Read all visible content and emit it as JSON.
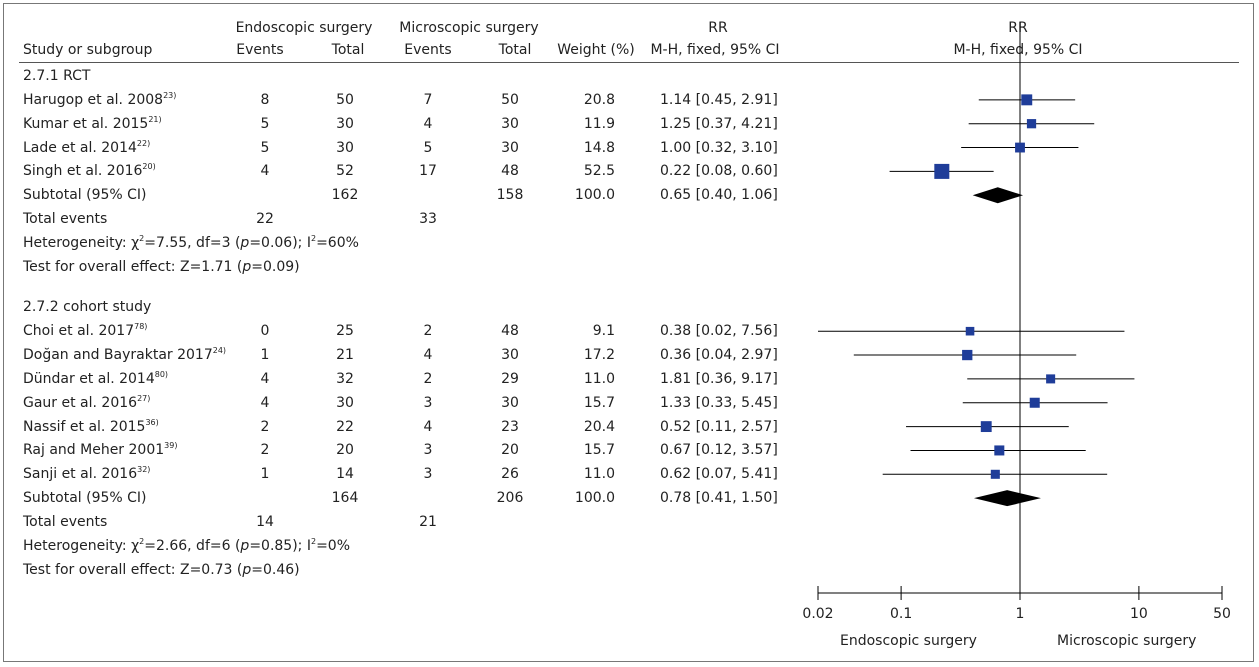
{
  "header": {
    "group1": "Endoscopic surgery",
    "group2": "Microscopic surgery",
    "rr_head": "RR",
    "study_col": "Study or subgroup",
    "events": "Events",
    "total": "Total",
    "weight": "Weight (%)",
    "method": "M-H, fixed, 95% CI",
    "plot_rr": "RR",
    "plot_method": "M-H, fixed, 95% CI"
  },
  "chart_data": {
    "type": "forest",
    "x_scale": "log",
    "xlim": [
      0.02,
      50
    ],
    "x_ticks": [
      "0.02",
      "0.1",
      "1",
      "10",
      "50"
    ],
    "null_value": 1,
    "favours_left": "Endoscopic surgery",
    "favours_right": "Microscopic surgery",
    "subgroups": [
      {
        "title": "2.7.1 RCT",
        "studies": [
          {
            "name": "Harugop et al. 2008",
            "ref": "23)",
            "e_events": "8",
            "e_total": "50",
            "m_events": "7",
            "m_total": "50",
            "weight": "20.8",
            "ci_text": "1.14 [0.45, 2.91]",
            "rr": 1.14,
            "lo": 0.45,
            "hi": 2.91,
            "w": 20.8
          },
          {
            "name": "Kumar et al. 2015",
            "ref": "21)",
            "e_events": "5",
            "e_total": "30",
            "m_events": "4",
            "m_total": "30",
            "weight": "11.9",
            "ci_text": "1.25 [0.37, 4.21]",
            "rr": 1.25,
            "lo": 0.37,
            "hi": 4.21,
            "w": 11.9
          },
          {
            "name": "Lade et al. 2014",
            "ref": "22)",
            "e_events": "5",
            "e_total": "30",
            "m_events": "5",
            "m_total": "30",
            "weight": "14.8",
            "ci_text": "1.00 [0.32, 3.10]",
            "rr": 1.0,
            "lo": 0.32,
            "hi": 3.1,
            "w": 14.8
          },
          {
            "name": "Singh et al. 2016",
            "ref": "20)",
            "e_events": "4",
            "e_total": "52",
            "m_events": "17",
            "m_total": "48",
            "weight": "52.5",
            "ci_text": "0.22 [0.08, 0.60]",
            "rr": 0.22,
            "lo": 0.08,
            "hi": 0.6,
            "w": 52.5
          }
        ],
        "subtotal": {
          "label": "Subtotal (95% CI)",
          "e_total": "162",
          "m_total": "158",
          "weight": "100.0",
          "ci_text": "0.65 [0.40, 1.06]",
          "rr": 0.65,
          "lo": 0.4,
          "hi": 1.06
        },
        "total_events": {
          "label": "Total events",
          "e": "22",
          "m": "33"
        },
        "heterogeneity": {
          "prefix": "Heterogeneity: ",
          "chi": "χ",
          "chi_sup": "2",
          "rest": "=7.55, df=3 (",
          "p": "p",
          "p_rest": "=0.06); I",
          "i_sup": "2",
          "end": "=60%"
        },
        "overall": {
          "text": "Test for overall effect: Z=1.71 (",
          "p": "p",
          "end": "=0.09)"
        }
      },
      {
        "title": "2.7.2 cohort study",
        "studies": [
          {
            "name": "Choi et al. 2017",
            "ref": "78)",
            "e_events": "0",
            "e_total": "25",
            "m_events": "2",
            "m_total": "48",
            "weight": "9.1",
            "ci_text": "0.38 [0.02, 7.56]",
            "rr": 0.38,
            "lo": 0.02,
            "hi": 7.56,
            "w": 9.1
          },
          {
            "name": "Doğan and Bayraktar 2017",
            "ref": "24)",
            "e_events": "1",
            "e_total": "21",
            "m_events": "4",
            "m_total": "30",
            "weight": "17.2",
            "ci_text": "0.36 [0.04, 2.97]",
            "rr": 0.36,
            "lo": 0.04,
            "hi": 2.97,
            "w": 17.2
          },
          {
            "name": "Dündar et al. 2014",
            "ref": "80)",
            "e_events": "4",
            "e_total": "32",
            "m_events": "2",
            "m_total": "29",
            "weight": "11.0",
            "ci_text": "1.81 [0.36, 9.17]",
            "rr": 1.81,
            "lo": 0.36,
            "hi": 9.17,
            "w": 11.0
          },
          {
            "name": "Gaur et al. 2016",
            "ref": "27)",
            "e_events": "4",
            "e_total": "30",
            "m_events": "3",
            "m_total": "30",
            "weight": "15.7",
            "ci_text": "1.33 [0.33, 5.45]",
            "rr": 1.33,
            "lo": 0.33,
            "hi": 5.45,
            "w": 15.7
          },
          {
            "name": "Nassif et al. 2015",
            "ref": "36)",
            "e_events": "2",
            "e_total": "22",
            "m_events": "4",
            "m_total": "23",
            "weight": "20.4",
            "ci_text": "0.52 [0.11, 2.57]",
            "rr": 0.52,
            "lo": 0.11,
            "hi": 2.57,
            "w": 20.4
          },
          {
            "name": "Raj and Meher 2001",
            "ref": "39)",
            "e_events": "2",
            "e_total": "20",
            "m_events": "3",
            "m_total": "20",
            "weight": "15.7",
            "ci_text": "0.67 [0.12, 3.57]",
            "rr": 0.67,
            "lo": 0.12,
            "hi": 3.57,
            "w": 15.7
          },
          {
            "name": "Sanji et al. 2016",
            "ref": "32)",
            "e_events": "1",
            "e_total": "14",
            "m_events": "3",
            "m_total": "26",
            "weight": "11.0",
            "ci_text": "0.62 [0.07, 5.41]",
            "rr": 0.62,
            "lo": 0.07,
            "hi": 5.41,
            "w": 11.0
          }
        ],
        "subtotal": {
          "label": "Subtotal (95% CI)",
          "e_total": "164",
          "m_total": "206",
          "weight": "100.0",
          "ci_text": "0.78 [0.41, 1.50]",
          "rr": 0.78,
          "lo": 0.41,
          "hi": 1.5
        },
        "total_events": {
          "label": "Total events",
          "e": "14",
          "m": "21"
        },
        "heterogeneity": {
          "prefix": "Heterogeneity: ",
          "chi": "χ",
          "chi_sup": "2",
          "rest": "=2.66, df=6 (",
          "p": "p",
          "p_rest": "=0.85); I",
          "i_sup": "2",
          "end": "=0%"
        },
        "overall": {
          "text": "Test for overall effect: Z=0.73 (",
          "p": "p",
          "end": "=0.46)"
        }
      }
    ],
    "colors": {
      "marker": "#1f3d99",
      "diamond": "#000000",
      "line": "#000000"
    }
  }
}
